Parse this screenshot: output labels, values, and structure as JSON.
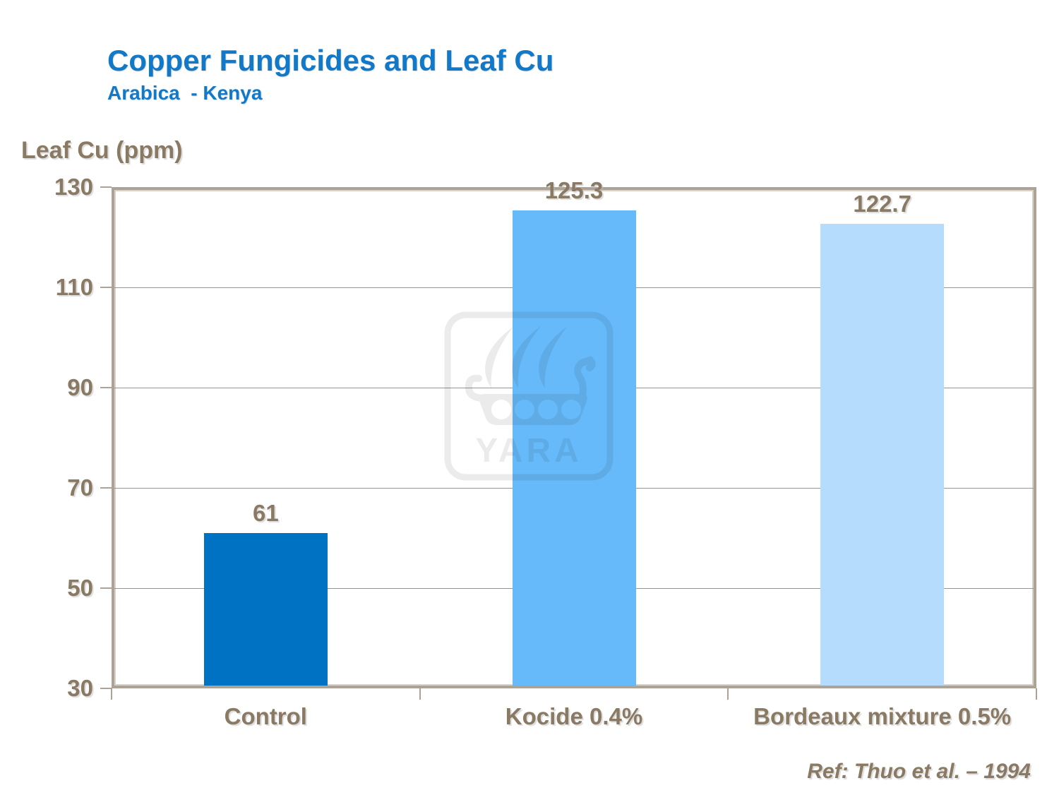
{
  "slide": {
    "title": "Copper Fungicides and Leaf Cu",
    "subtitle": "Arabica  - Kenya",
    "y_axis_title": "Leaf Cu (ppm)",
    "reference": "Ref: Thuo et al. – 1994",
    "watermark_text": "YARA"
  },
  "colors": {
    "title_blue": "#1278c8",
    "text_brown": "#8a7a63",
    "axis_tan": "#aca295",
    "axis_tan_light": "#d8d2c8",
    "gridline": "#9e9485",
    "bar_control": "#0072c3",
    "bar_kocide": "#66baf9",
    "bar_bordeaux": "#b5dcfc"
  },
  "chart_data": {
    "type": "bar",
    "title": "Copper Fungicides and Leaf Cu",
    "subtitle": "Arabica  - Kenya",
    "ylabel": "Leaf Cu (ppm)",
    "xlabel": "",
    "categories": [
      "Control",
      "Kocide 0.4%",
      "Bordeaux mixture 0.5%"
    ],
    "values": [
      61,
      125.3,
      122.7
    ],
    "value_labels": [
      "61",
      "125.3",
      "122.7"
    ],
    "bar_colors": [
      "#0072c3",
      "#66baf9",
      "#b5dcfc"
    ],
    "ylim": [
      30,
      130
    ],
    "yticks": [
      30,
      50,
      70,
      90,
      110,
      130
    ],
    "grid": true,
    "legend": false,
    "annotation": "Ref: Thuo et al. – 1994"
  }
}
